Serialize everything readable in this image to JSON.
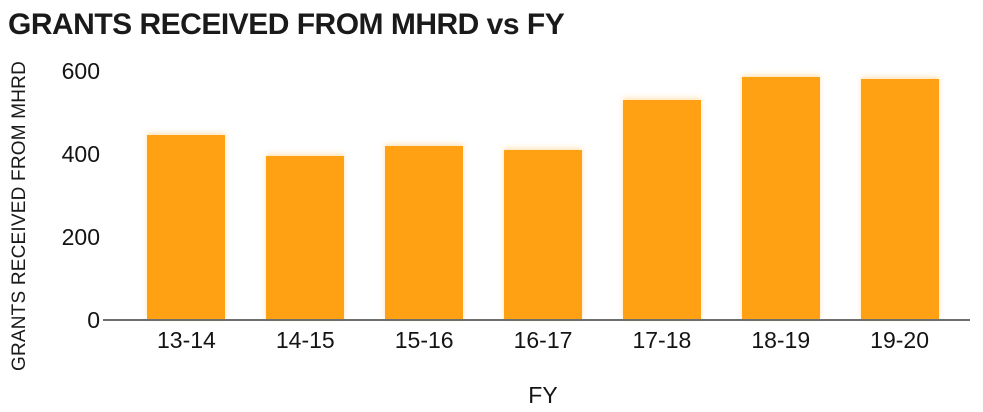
{
  "chart_data": {
    "type": "bar",
    "title": "GRANTS RECEIVED FROM MHRD vs FY",
    "xlabel": "FY",
    "ylabel": "GRANTS RECEIVED FROM MHRD",
    "categories": [
      "13-14",
      "14-15",
      "15-16",
      "16-17",
      "17-18",
      "18-19",
      "19-20"
    ],
    "values": [
      445,
      395,
      420,
      410,
      530,
      585,
      580
    ],
    "yticks": [
      0,
      200,
      400,
      600
    ],
    "ylim": [
      0,
      600
    ],
    "grid": false,
    "legend": "none",
    "bar_color": "#FFA113",
    "axis_line_color": "#6E6E6E",
    "text_color": "#141414"
  }
}
